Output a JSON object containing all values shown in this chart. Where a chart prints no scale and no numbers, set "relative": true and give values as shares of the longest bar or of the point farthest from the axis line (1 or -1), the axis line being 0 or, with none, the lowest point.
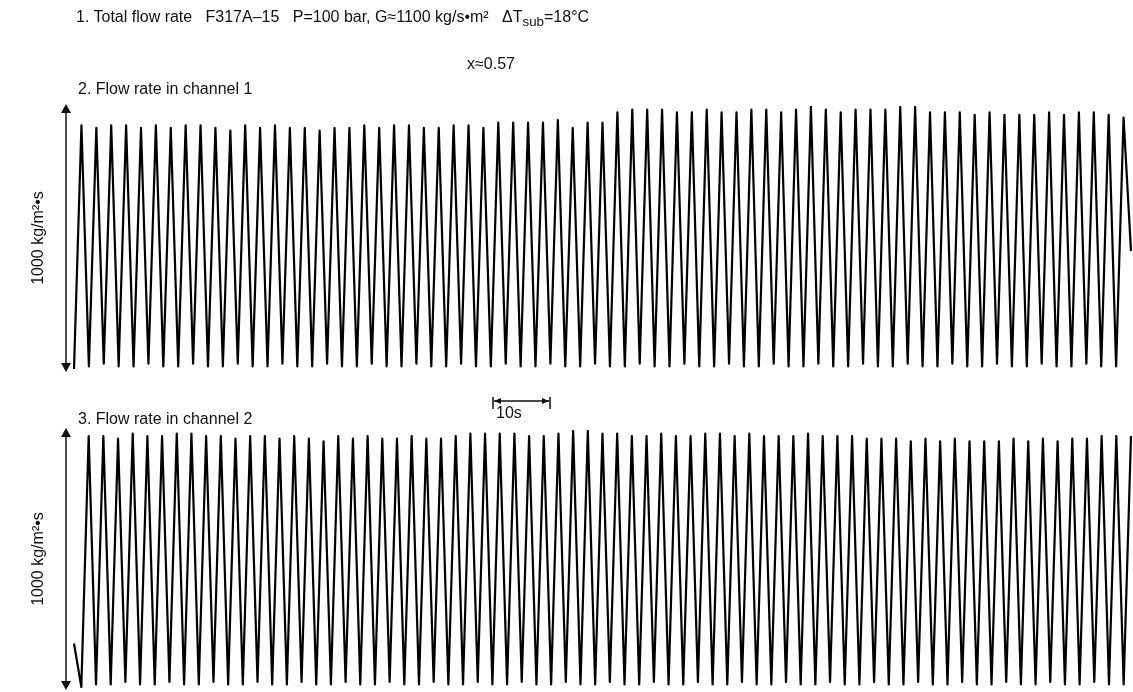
{
  "chart_data": [
    {
      "type": "line",
      "title": "2. Flow rate in channel 1",
      "ylabel": "1000 kg/m²•s",
      "relative": true,
      "annotations": [
        "1. Total flow rate   F317A–15   P=100 bar, G≈1100 kg/s•m²   ΔT$_{sub}$=18°C",
        "x≈0.57"
      ],
      "categories": [
        null,
        null,
        null,
        null,
        null,
        null,
        null,
        null,
        null,
        null,
        null,
        null,
        null,
        null,
        null,
        null,
        null,
        null,
        null,
        null,
        null,
        null,
        null,
        null,
        null,
        null,
        null,
        null,
        null,
        null,
        null,
        null,
        null,
        null,
        null,
        null,
        null,
        null,
        null,
        null,
        null,
        null,
        null,
        null,
        null,
        null,
        null,
        null,
        null,
        null,
        null,
        null,
        null,
        null,
        null,
        null,
        null,
        null,
        null,
        null,
        null,
        null,
        null,
        null,
        null,
        null,
        null,
        null,
        null,
        null,
        null,
        null,
        null,
        null,
        null,
        null,
        null,
        null,
        null,
        null,
        null,
        null,
        null,
        null,
        null,
        null,
        null,
        null,
        null,
        null,
        null,
        null,
        null,
        null,
        null,
        null,
        null,
        null,
        null,
        null,
        null,
        null,
        null,
        null,
        null,
        null,
        null,
        null,
        null,
        null,
        null,
        null,
        null,
        null,
        null,
        null,
        null,
        null,
        null,
        null,
        null,
        null,
        null,
        null,
        null,
        null,
        null,
        null,
        null,
        null,
        null,
        null,
        null,
        null,
        null,
        null,
        null,
        null,
        null,
        null,
        null,
        null,
        null
      ],
      "series": [
        {
          "color": "#000000",
          "values": [
            0,
            0.93,
            0.01,
            0.92,
            0.02,
            0.93,
            0.01,
            0.93,
            0.01,
            0.92,
            0.02,
            0.93,
            0.01,
            0.92,
            0.01,
            0.93,
            0.02,
            0.93,
            0.01,
            0.92,
            0.01,
            0.91,
            0.02,
            0.93,
            0.01,
            0.92,
            0.01,
            0.93,
            0.02,
            0.92,
            0.01,
            0.92,
            0.01,
            0.91,
            0.02,
            0.92,
            0.01,
            0.92,
            0.01,
            0.93,
            0.02,
            0.92,
            0.01,
            0.93,
            0.01,
            0.93,
            0.02,
            0.92,
            0.01,
            0.92,
            0.01,
            0.93,
            0.02,
            0.93,
            0.01,
            0.92,
            0.01,
            0.94,
            0.02,
            0.94,
            0.01,
            0.94,
            0.01,
            0.94,
            0.02,
            0.95,
            0.01,
            0.92,
            0.01,
            0.94,
            0.02,
            0.94,
            0.01,
            0.98,
            0.01,
            0.99,
            0.02,
            0.99,
            0.01,
            0.99,
            0.01,
            0.98,
            0.02,
            0.98,
            0.01,
            0.99,
            0.01,
            0.98,
            0.02,
            0.98,
            0.01,
            0.99,
            0.01,
            0.99,
            0.02,
            0.98,
            0.01,
            0.99,
            0.01,
            1.0,
            0.02,
            0.99,
            0.01,
            0.98,
            0.01,
            0.99,
            0.02,
            0.99,
            0.01,
            0.99,
            0.01,
            1.0,
            0.02,
            1.0,
            0.01,
            0.98,
            0.01,
            0.98,
            0.02,
            0.98,
            0.01,
            0.97,
            0.01,
            0.98,
            0.02,
            0.97,
            0.01,
            0.97,
            0.01,
            0.97,
            0.02,
            0.98,
            0.01,
            0.97,
            0.01,
            0.98,
            0.02,
            0.98,
            0.01,
            0.97,
            0.01,
            0.96,
            0.45
          ]
        }
      ]
    },
    {
      "type": "line",
      "title": "3. Flow rate in channel 2",
      "ylabel": "1000 kg/m²•s",
      "relative": true,
      "annotations": [
        "10s"
      ],
      "categories": [
        null,
        null,
        null,
        null,
        null,
        null,
        null,
        null,
        null,
        null,
        null,
        null,
        null,
        null,
        null,
        null,
        null,
        null,
        null,
        null,
        null,
        null,
        null,
        null,
        null,
        null,
        null,
        null,
        null,
        null,
        null,
        null,
        null,
        null,
        null,
        null,
        null,
        null,
        null,
        null,
        null,
        null,
        null,
        null,
        null,
        null,
        null,
        null,
        null,
        null,
        null,
        null,
        null,
        null,
        null,
        null,
        null,
        null,
        null,
        null,
        null,
        null,
        null,
        null,
        null,
        null,
        null,
        null,
        null,
        null,
        null,
        null,
        null,
        null,
        null,
        null,
        null,
        null,
        null,
        null,
        null,
        null,
        null,
        null,
        null,
        null,
        null,
        null,
        null,
        null,
        null,
        null,
        null,
        null,
        null,
        null,
        null,
        null,
        null,
        null,
        null,
        null,
        null,
        null,
        null,
        null,
        null,
        null,
        null,
        null,
        null,
        null,
        null,
        null,
        null,
        null,
        null,
        null,
        null,
        null,
        null,
        null,
        null,
        null,
        null,
        null,
        null,
        null,
        null,
        null,
        null,
        null,
        null,
        null,
        null,
        null,
        null,
        null,
        null,
        null,
        null,
        null,
        null,
        null,
        null
      ],
      "series": [
        {
          "color": "#000000",
          "values": [
            0.17,
            0,
            0.98,
            0.01,
            0.98,
            0.01,
            0.97,
            0.02,
            0.99,
            0.01,
            0.98,
            0.01,
            0.98,
            0.02,
            0.99,
            0.01,
            0.99,
            0.01,
            0.98,
            0.02,
            0.98,
            0.01,
            0.97,
            0.01,
            0.98,
            0.02,
            0.98,
            0.01,
            0.97,
            0.01,
            0.98,
            0.02,
            0.97,
            0.01,
            0.96,
            0.01,
            0.98,
            0.02,
            0.97,
            0.01,
            0.98,
            0.01,
            0.97,
            0.02,
            0.97,
            0.01,
            0.98,
            0.01,
            0.97,
            0.02,
            0.97,
            0.01,
            0.98,
            0.01,
            0.99,
            0.02,
            0.99,
            0.01,
            0.99,
            0.01,
            0.99,
            0.02,
            0.98,
            0.01,
            0.98,
            0.01,
            0.99,
            0.02,
            1.0,
            0.01,
            1.0,
            0.01,
            0.99,
            0.02,
            0.99,
            0.01,
            0.98,
            0.01,
            0.98,
            0.02,
            0.99,
            0.01,
            0.98,
            0.01,
            0.98,
            0.02,
            0.99,
            0.01,
            0.99,
            0.01,
            0.98,
            0.02,
            0.99,
            0.01,
            0.98,
            0.01,
            0.98,
            0.02,
            0.98,
            0.01,
            0.99,
            0.01,
            0.98,
            0.02,
            0.98,
            0.01,
            0.98,
            0.01,
            0.97,
            0.02,
            0.97,
            0.01,
            0.97,
            0.01,
            0.96,
            0.02,
            0.97,
            0.01,
            0.96,
            0.01,
            0.97,
            0.02,
            0.96,
            0.01,
            0.96,
            0.01,
            0.96,
            0.02,
            0.97,
            0.01,
            0.96,
            0.01,
            0.97,
            0.02,
            0.96,
            0.01,
            0.97,
            0.01,
            0.97,
            0.02,
            0.98,
            0.01,
            0.98,
            0.01,
            0.98
          ]
        }
      ]
    }
  ]
}
